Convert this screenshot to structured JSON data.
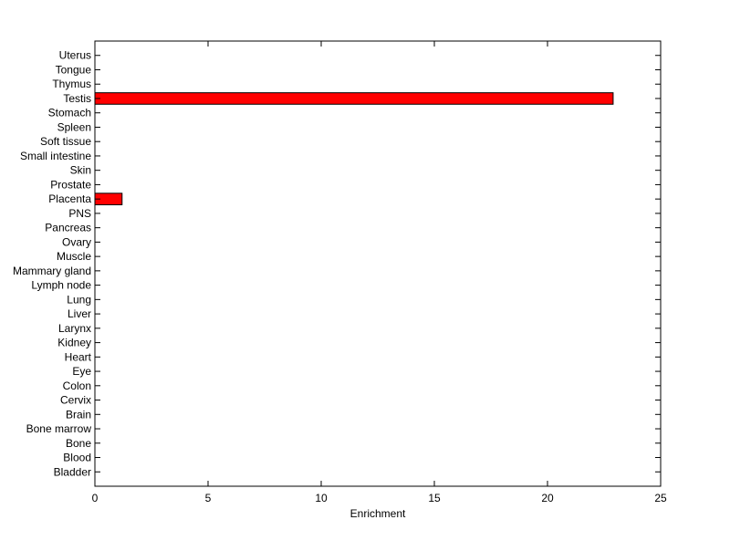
{
  "chart_data": {
    "type": "bar",
    "orientation": "horizontal",
    "title": "",
    "xlabel": "Enrichment",
    "ylabel": "",
    "xlim": [
      0,
      25
    ],
    "xticks": [
      0,
      5,
      10,
      15,
      20,
      25
    ],
    "grid": false,
    "bar_color": "#ff0000",
    "bar_edge_color": "#000000",
    "categories": [
      "Bladder",
      "Blood",
      "Bone",
      "Bone marrow",
      "Brain",
      "Cervix",
      "Colon",
      "Eye",
      "Heart",
      "Kidney",
      "Larynx",
      "Liver",
      "Lung",
      "Lymph node",
      "Mammary gland",
      "Muscle",
      "Ovary",
      "Pancreas",
      "PNS",
      "Placenta",
      "Prostate",
      "Skin",
      "Small intestine",
      "Soft tissue",
      "Spleen",
      "Stomach",
      "Testis",
      "Thymus",
      "Tongue",
      "Uterus"
    ],
    "values": [
      0,
      0,
      0,
      0,
      0,
      0,
      0,
      0,
      0,
      0,
      0,
      0,
      0,
      0,
      0,
      0,
      0,
      0,
      0,
      1.2,
      0,
      0,
      0,
      0,
      0,
      0,
      22.9,
      0,
      0,
      0
    ]
  }
}
